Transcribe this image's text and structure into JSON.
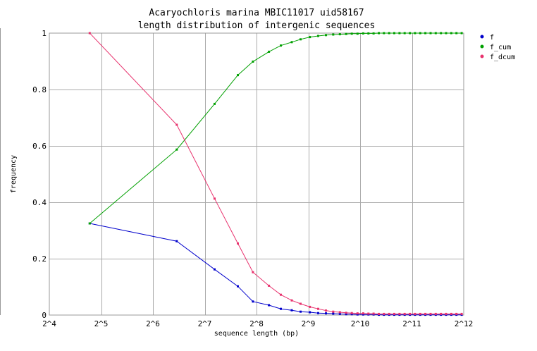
{
  "chart_data": {
    "type": "line",
    "title": "Acaryochloris marina MBIC11017 uid58167",
    "subtitle": "length distribution of intergenic sequences",
    "xlabel": "sequence length (bp)",
    "ylabel": "frequency",
    "x_scale": "log2",
    "xlim_exponent": [
      4,
      12
    ],
    "ylim": [
      0,
      1
    ],
    "x_ticks": [
      {
        "exp": 4,
        "label": "2^4"
      },
      {
        "exp": 5,
        "label": "2^5"
      },
      {
        "exp": 6,
        "label": "2^6"
      },
      {
        "exp": 7,
        "label": "2^7"
      },
      {
        "exp": 8,
        "label": "2^8"
      },
      {
        "exp": 9,
        "label": "2^9"
      },
      {
        "exp": 10,
        "label": "2^10"
      },
      {
        "exp": 11,
        "label": "2^11"
      },
      {
        "exp": 12,
        "label": "2^12"
      }
    ],
    "y_ticks": [
      {
        "value": 0,
        "label": "0"
      },
      {
        "value": 0.2,
        "label": "0.2"
      },
      {
        "value": 0.4,
        "label": "0.4"
      },
      {
        "value": 0.6,
        "label": "0.6"
      },
      {
        "value": 0.8,
        "label": "0.8"
      },
      {
        "value": 1,
        "label": "1"
      }
    ],
    "grid": true,
    "legend_position": "right",
    "series": [
      {
        "name": "f",
        "color": "#0000cc",
        "x_exp": [
          4.78,
          6.46,
          7.19,
          7.64,
          7.93,
          8.24,
          8.47,
          8.68,
          8.85,
          9.03,
          9.19,
          9.34,
          9.48,
          9.61,
          9.73,
          9.84,
          9.95,
          10.06,
          10.16,
          10.26,
          10.36,
          10.46,
          10.56,
          10.66,
          10.76,
          10.86,
          10.96,
          11.06,
          11.16,
          11.26,
          11.36,
          11.46,
          11.56,
          11.66,
          11.76,
          11.86,
          11.96
        ],
        "values": [
          0.325,
          0.262,
          0.162,
          0.102,
          0.048,
          0.035,
          0.022,
          0.017,
          0.012,
          0.01,
          0.007,
          0.006,
          0.005,
          0.004,
          0.003,
          0.003,
          0.002,
          0.002,
          0.002,
          0.002,
          0.001,
          0.001,
          0.001,
          0.001,
          0.001,
          0.001,
          0.001,
          0.001,
          0.001,
          0.001,
          0.001,
          0.001,
          0.001,
          0.001,
          0.001,
          0.001,
          0.001
        ]
      },
      {
        "name": "f_cum",
        "color": "#00a000",
        "x_exp": [
          4.78,
          6.46,
          7.19,
          7.64,
          7.93,
          8.24,
          8.47,
          8.68,
          8.85,
          9.03,
          9.19,
          9.34,
          9.48,
          9.61,
          9.73,
          9.84,
          9.95,
          10.06,
          10.16,
          10.26,
          10.36,
          10.46,
          10.56,
          10.66,
          10.76,
          10.86,
          10.96,
          11.06,
          11.16,
          11.26,
          11.36,
          11.46,
          11.56,
          11.66,
          11.76,
          11.86,
          11.96
        ],
        "values": [
          0.325,
          0.587,
          0.749,
          0.851,
          0.899,
          0.934,
          0.956,
          0.968,
          0.978,
          0.986,
          0.99,
          0.993,
          0.995,
          0.996,
          0.997,
          0.998,
          0.998,
          0.999,
          0.999,
          0.999,
          1.0,
          1.0,
          1.0,
          1.0,
          1.0,
          1.0,
          1.0,
          1.0,
          1.0,
          1.0,
          1.0,
          1.0,
          1.0,
          1.0,
          1.0,
          1.0,
          1.0
        ]
      },
      {
        "name": "f_dcum",
        "color": "#e8336e",
        "x_exp": [
          4.78,
          6.46,
          7.19,
          7.64,
          7.93,
          8.24,
          8.47,
          8.68,
          8.85,
          9.03,
          9.19,
          9.34,
          9.48,
          9.61,
          9.73,
          9.84,
          9.95,
          10.06,
          10.16,
          10.26,
          10.36,
          10.46,
          10.56,
          10.66,
          10.76,
          10.86,
          10.96,
          11.06,
          11.16,
          11.26,
          11.36,
          11.46,
          11.56,
          11.66,
          11.76,
          11.86,
          11.96
        ],
        "values": [
          1.0,
          0.675,
          0.413,
          0.254,
          0.152,
          0.104,
          0.072,
          0.052,
          0.04,
          0.029,
          0.022,
          0.016,
          0.012,
          0.01,
          0.008,
          0.007,
          0.006,
          0.006,
          0.005,
          0.005,
          0.004,
          0.004,
          0.004,
          0.004,
          0.004,
          0.004,
          0.004,
          0.004,
          0.004,
          0.004,
          0.004,
          0.004,
          0.004,
          0.004,
          0.004,
          0.004,
          0.004
        ]
      }
    ]
  }
}
